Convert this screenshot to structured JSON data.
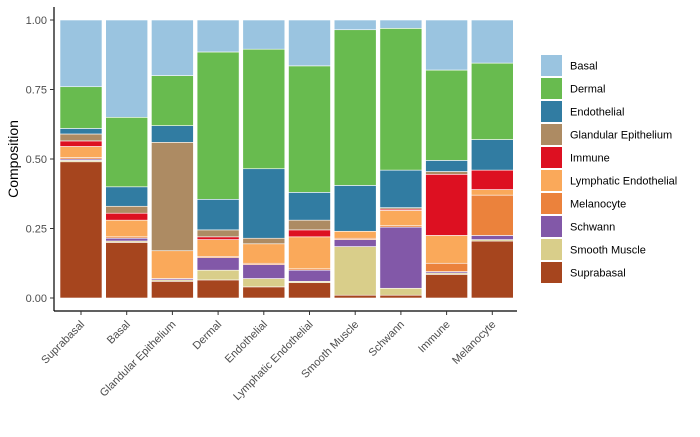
{
  "chart_data": {
    "type": "bar",
    "stacked": true,
    "xlabel": "",
    "ylabel": "Composition",
    "ylim": [
      0,
      1
    ],
    "yticks": [
      0.0,
      0.25,
      0.5,
      0.75,
      1.0
    ],
    "ytick_labels": [
      "0.00",
      "0.25",
      "0.50",
      "0.75",
      "1.00"
    ],
    "grid": false,
    "legend_position": "right",
    "categories": [
      "Suprabasal",
      "Basal",
      "Glandular Epithelium",
      "Dermal",
      "Endothelial",
      "Lymphatic Endothelial",
      "Smooth Muscle",
      "Schwann",
      "Immune",
      "Melanocyte"
    ],
    "series": [
      {
        "name": "Suprabasal",
        "color": "#A6451E",
        "values": [
          0.49,
          0.2,
          0.06,
          0.065,
          0.04,
          0.055,
          0.01,
          0.01,
          0.085,
          0.205
        ]
      },
      {
        "name": "Smooth Muscle",
        "color": "#D9CE8A",
        "values": [
          0.005,
          0.005,
          0.005,
          0.035,
          0.03,
          0.005,
          0.175,
          0.025,
          0.005,
          0.005
        ]
      },
      {
        "name": "Schwann",
        "color": "#8258A8",
        "values": [
          0.005,
          0.01,
          0.005,
          0.045,
          0.05,
          0.04,
          0.025,
          0.22,
          0.005,
          0.015
        ]
      },
      {
        "name": "Melanocyte",
        "color": "#EB823C",
        "values": [
          0.005,
          0.005,
          0.0,
          0.005,
          0.005,
          0.005,
          0.005,
          0.005,
          0.03,
          0.145
        ]
      },
      {
        "name": "Lymphatic Endothelial",
        "color": "#FAA95A",
        "values": [
          0.04,
          0.06,
          0.1,
          0.06,
          0.07,
          0.115,
          0.025,
          0.055,
          0.1,
          0.02
        ]
      },
      {
        "name": "Immune",
        "color": "#DD1021",
        "values": [
          0.02,
          0.025,
          0.0,
          0.01,
          0.0,
          0.025,
          0.0,
          0.005,
          0.22,
          0.07
        ]
      },
      {
        "name": "Glandular Epithelium",
        "color": "#AD8B63",
        "values": [
          0.025,
          0.025,
          0.39,
          0.025,
          0.02,
          0.035,
          0.0,
          0.005,
          0.01,
          0.0
        ]
      },
      {
        "name": "Endothelial",
        "color": "#317CA2",
        "values": [
          0.02,
          0.07,
          0.06,
          0.11,
          0.25,
          0.1,
          0.165,
          0.135,
          0.04,
          0.11
        ]
      },
      {
        "name": "Dermal",
        "color": "#68BB4F",
        "values": [
          0.15,
          0.25,
          0.18,
          0.53,
          0.43,
          0.455,
          0.56,
          0.51,
          0.325,
          0.275
        ]
      },
      {
        "name": "Basal",
        "color": "#9AC4E0",
        "values": [
          0.24,
          0.35,
          0.2,
          0.115,
          0.105,
          0.165,
          0.035,
          0.03,
          0.18,
          0.155
        ]
      }
    ],
    "legend_order": [
      "Basal",
      "Dermal",
      "Endothelial",
      "Glandular Epithelium",
      "Immune",
      "Lymphatic Endothelial",
      "Melanocyte",
      "Schwann",
      "Smooth Muscle",
      "Suprabasal"
    ]
  }
}
